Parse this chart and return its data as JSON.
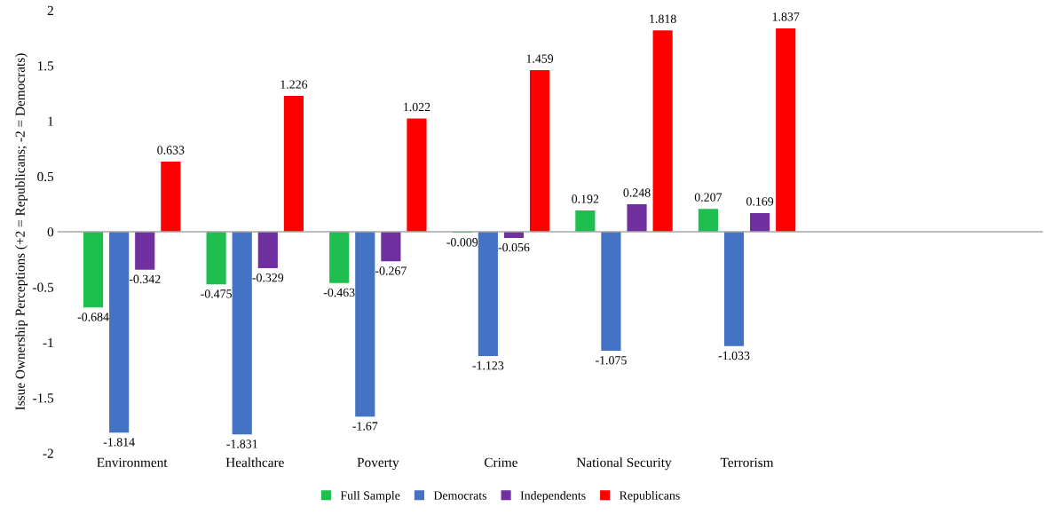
{
  "chart_data": {
    "type": "bar",
    "ylabel": "Issue Ownership Perceptions (+2 = Republicans; -2 = Democrats)",
    "categories": [
      "Environment",
      "Healthcare",
      "Poverty",
      "Crime",
      "National Security",
      "Terrorism"
    ],
    "series": [
      {
        "name": "Full Sample",
        "color": "#1fbf4f",
        "values": [
          -0.684,
          -0.475,
          -0.463,
          -0.009,
          0.192,
          0.207
        ]
      },
      {
        "name": "Democrats",
        "color": "#4472c4",
        "values": [
          -1.814,
          -1.831,
          -1.67,
          -1.123,
          -1.075,
          -1.033
        ]
      },
      {
        "name": "Independents",
        "color": "#7030a0",
        "values": [
          -0.342,
          -0.329,
          -0.267,
          -0.056,
          0.248,
          0.169
        ]
      },
      {
        "name": "Republicans",
        "color": "#ff0000",
        "values": [
          0.633,
          1.226,
          1.022,
          1.459,
          1.818,
          1.837
        ]
      }
    ],
    "ylim": [
      -2,
      2
    ],
    "yticks": [
      -2,
      -1.5,
      -1,
      -0.5,
      0,
      0.5,
      1,
      1.5,
      2
    ],
    "data_labels": true,
    "legend": "bottom"
  }
}
